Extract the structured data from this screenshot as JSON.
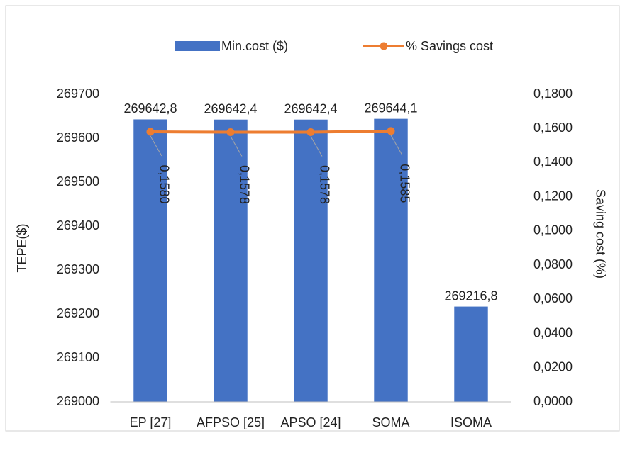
{
  "chart_data": {
    "type": "bar",
    "categories": [
      "EP [27]",
      "AFPSO [25]",
      "APSO [24]",
      "SOMA",
      "ISOMA"
    ],
    "series": [
      {
        "name": "Min.cost ($)",
        "type": "bar",
        "color": "#4472c4",
        "values": [
          269642.8,
          269642.4,
          269642.4,
          269644.1,
          269216.8
        ],
        "value_labels": [
          "269642,8",
          "269642,4",
          "269642,4",
          "269644,1",
          "269216,8"
        ]
      },
      {
        "name": "% Savings cost",
        "type": "line",
        "axis": "y2",
        "color": "#ed7d31",
        "values": [
          0.158,
          0.1578,
          0.1578,
          0.1585,
          null
        ],
        "value_labels": [
          "0,1580",
          "0,1578",
          "0,1578",
          "0,1585",
          null
        ]
      }
    ],
    "y_label": "TEPE($)",
    "y2_label": "Saving cost (%)",
    "ylim": [
      269000,
      269700
    ],
    "yticks": [
      269000,
      269100,
      269200,
      269300,
      269400,
      269500,
      269600,
      269700
    ],
    "y2lim": [
      0,
      0.18
    ],
    "y2ticks": [
      {
        "value": 0,
        "label": "0,0000"
      },
      {
        "value": 0.02,
        "label": "0,0200"
      },
      {
        "value": 0.04,
        "label": "0,0400"
      },
      {
        "value": 0.06,
        "label": "0,0600"
      },
      {
        "value": 0.08,
        "label": "0,0800"
      },
      {
        "value": 0.1,
        "label": "0,1000"
      },
      {
        "value": 0.12,
        "label": "0,1200"
      },
      {
        "value": 0.14,
        "label": "0,1400"
      },
      {
        "value": 0.16,
        "label": "0,1600"
      },
      {
        "value": 0.18,
        "label": "0,1800"
      }
    ],
    "legend": "top"
  }
}
